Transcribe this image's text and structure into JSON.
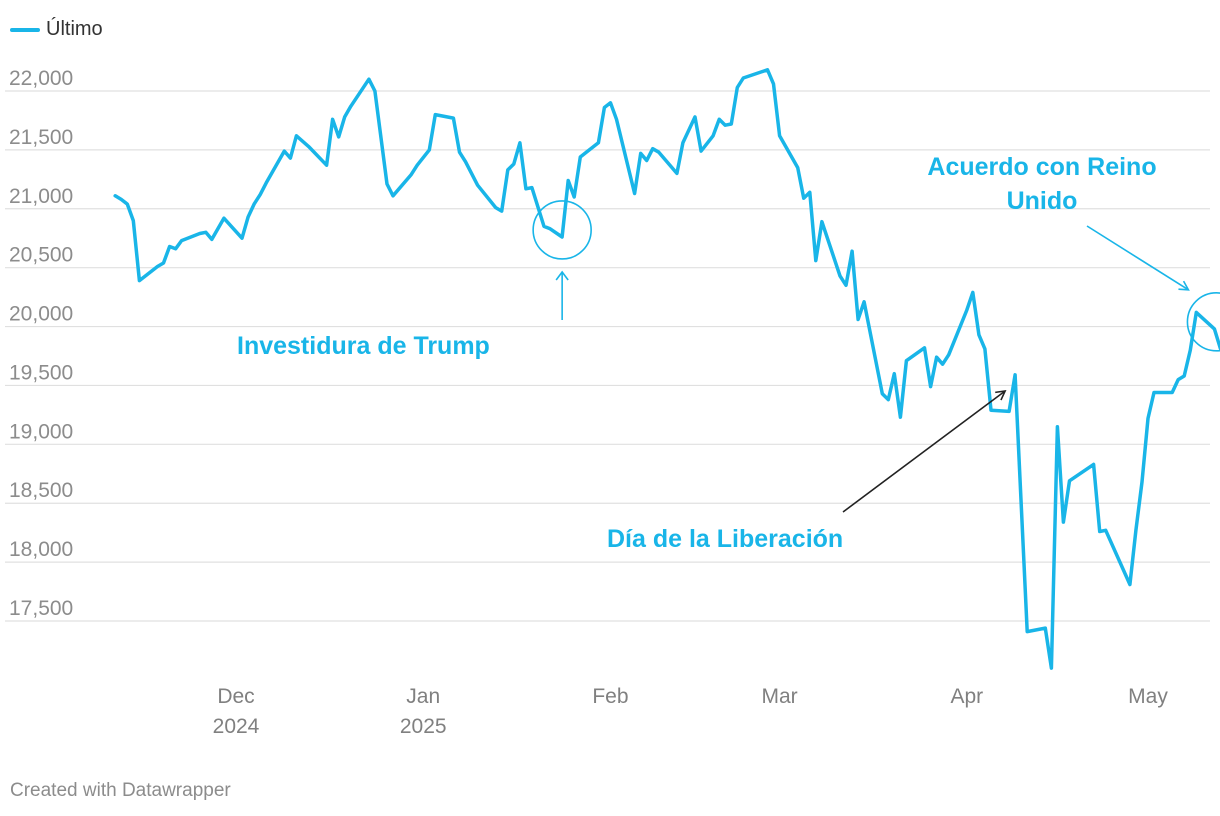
{
  "legend": {
    "label": "Último",
    "color": "#19b5e8"
  },
  "footer": "Created with Datawrapper",
  "chart_data": {
    "type": "line",
    "title": "",
    "xlabel": "",
    "ylabel": "",
    "ylim": [
      17000,
      22300
    ],
    "yticks": [
      {
        "value": 17500,
        "label": "17,500"
      },
      {
        "value": 18000,
        "label": "18,000"
      },
      {
        "value": 18500,
        "label": "18,500"
      },
      {
        "value": 19000,
        "label": "19,000"
      },
      {
        "value": 19500,
        "label": "19,500"
      },
      {
        "value": 20000,
        "label": "20,000"
      },
      {
        "value": 20500,
        "label": "20,500"
      },
      {
        "value": 21000,
        "label": "21,000"
      },
      {
        "value": 21500,
        "label": "21,500"
      },
      {
        "value": 22000,
        "label": "22,000"
      }
    ],
    "xrange": [
      "2024-11-08",
      "2025-05-08"
    ],
    "xticks": [
      {
        "date": "2024-12-01",
        "line1": "Dec",
        "line2": "2024"
      },
      {
        "date": "2025-01-01",
        "line1": "Jan",
        "line2": "2025"
      },
      {
        "date": "2025-02-01",
        "line1": "Feb",
        "line2": ""
      },
      {
        "date": "2025-03-01",
        "line1": "Mar",
        "line2": ""
      },
      {
        "date": "2025-04-01",
        "line1": "Apr",
        "line2": ""
      },
      {
        "date": "2025-05-01",
        "line1": "May",
        "line2": ""
      }
    ],
    "grid": true,
    "legend_position": "top-left",
    "series": [
      {
        "name": "Último",
        "color": "#19b5e8",
        "points": [
          [
            "2024-11-11",
            21110
          ],
          [
            "2024-11-12",
            21080
          ],
          [
            "2024-11-13",
            21040
          ],
          [
            "2024-11-14",
            20900
          ],
          [
            "2024-11-15",
            20390
          ],
          [
            "2024-11-18",
            20510
          ],
          [
            "2024-11-19",
            20540
          ],
          [
            "2024-11-20",
            20680
          ],
          [
            "2024-11-21",
            20660
          ],
          [
            "2024-11-22",
            20730
          ],
          [
            "2024-11-25",
            20790
          ],
          [
            "2024-11-26",
            20800
          ],
          [
            "2024-11-27",
            20740
          ],
          [
            "2024-11-29",
            20920
          ],
          [
            "2024-12-02",
            20750
          ],
          [
            "2024-12-03",
            20930
          ],
          [
            "2024-12-04",
            21040
          ],
          [
            "2024-12-05",
            21120
          ],
          [
            "2024-12-06",
            21220
          ],
          [
            "2024-12-09",
            21490
          ],
          [
            "2024-12-10",
            21430
          ],
          [
            "2024-12-11",
            21620
          ],
          [
            "2024-12-13",
            21530
          ],
          [
            "2024-12-16",
            21370
          ],
          [
            "2024-12-17",
            21760
          ],
          [
            "2024-12-18",
            21610
          ],
          [
            "2024-12-19",
            21780
          ],
          [
            "2024-12-20",
            21870
          ],
          [
            "2024-12-23",
            22100
          ],
          [
            "2024-12-24",
            22000
          ],
          [
            "2024-12-26",
            21210
          ],
          [
            "2024-12-27",
            21110
          ],
          [
            "2024-12-30",
            21290
          ],
          [
            "2024-12-31",
            21370
          ],
          [
            "2025-01-02",
            21500
          ],
          [
            "2025-01-03",
            21800
          ],
          [
            "2025-01-06",
            21770
          ],
          [
            "2025-01-07",
            21480
          ],
          [
            "2025-01-08",
            21400
          ],
          [
            "2025-01-10",
            21200
          ],
          [
            "2025-01-13",
            21010
          ],
          [
            "2025-01-14",
            20980
          ],
          [
            "2025-01-15",
            21330
          ],
          [
            "2025-01-16",
            21380
          ],
          [
            "2025-01-17",
            21560
          ],
          [
            "2025-01-18",
            21170
          ],
          [
            "2025-01-19",
            21180
          ],
          [
            "2025-01-21",
            20850
          ],
          [
            "2025-01-22",
            20830
          ],
          [
            "2025-01-24",
            20760
          ],
          [
            "2025-01-25",
            21240
          ],
          [
            "2025-01-26",
            21100
          ],
          [
            "2025-01-27",
            21440
          ],
          [
            "2025-01-28",
            21480
          ],
          [
            "2025-01-30",
            21560
          ],
          [
            "2025-01-31",
            21860
          ],
          [
            "2025-02-01",
            21900
          ],
          [
            "2025-02-02",
            21760
          ],
          [
            "2025-02-05",
            21130
          ],
          [
            "2025-02-06",
            21470
          ],
          [
            "2025-02-07",
            21410
          ],
          [
            "2025-02-08",
            21510
          ],
          [
            "2025-02-09",
            21480
          ],
          [
            "2025-02-12",
            21300
          ],
          [
            "2025-02-13",
            21560
          ],
          [
            "2025-02-15",
            21780
          ],
          [
            "2025-02-16",
            21490
          ],
          [
            "2025-02-18",
            21620
          ],
          [
            "2025-02-19",
            21760
          ],
          [
            "2025-02-20",
            21710
          ],
          [
            "2025-02-21",
            21720
          ],
          [
            "2025-02-22",
            22030
          ],
          [
            "2025-02-23",
            22110
          ],
          [
            "2025-02-27",
            22180
          ],
          [
            "2025-02-28",
            22060
          ],
          [
            "2025-03-01",
            21620
          ],
          [
            "2025-03-04",
            21350
          ],
          [
            "2025-03-05",
            21090
          ],
          [
            "2025-03-06",
            21140
          ],
          [
            "2025-03-07",
            20560
          ],
          [
            "2025-03-08",
            20890
          ],
          [
            "2025-03-11",
            20430
          ],
          [
            "2025-03-12",
            20350
          ],
          [
            "2025-03-13",
            20640
          ],
          [
            "2025-03-14",
            20060
          ],
          [
            "2025-03-15",
            20210
          ],
          [
            "2025-03-18",
            19430
          ],
          [
            "2025-03-19",
            19380
          ],
          [
            "2025-03-20",
            19600
          ],
          [
            "2025-03-21",
            19230
          ],
          [
            "2025-03-22",
            19710
          ],
          [
            "2025-03-25",
            19820
          ],
          [
            "2025-03-26",
            19490
          ],
          [
            "2025-03-27",
            19740
          ],
          [
            "2025-03-28",
            19680
          ],
          [
            "2025-03-29",
            19760
          ],
          [
            "2025-04-01",
            20140
          ],
          [
            "2025-04-02",
            20290
          ],
          [
            "2025-04-03",
            19930
          ],
          [
            "2025-04-04",
            19810
          ],
          [
            "2025-04-05",
            19290
          ],
          [
            "2025-04-08",
            19280
          ],
          [
            "2025-04-09",
            19590
          ],
          [
            "2025-04-11",
            17410
          ],
          [
            "2025-04-14",
            17440
          ],
          [
            "2025-04-15",
            17100
          ],
          [
            "2025-04-16",
            19150
          ],
          [
            "2025-04-17",
            18340
          ],
          [
            "2025-04-18",
            18690
          ],
          [
            "2025-04-22",
            18830
          ],
          [
            "2025-04-23",
            18260
          ],
          [
            "2025-04-24",
            18270
          ],
          [
            "2025-04-28",
            17810
          ],
          [
            "2025-04-29",
            18270
          ],
          [
            "2025-04-30",
            18680
          ],
          [
            "2025-05-01",
            19220
          ],
          [
            "2025-05-02",
            19440
          ],
          [
            "2025-05-05",
            19440
          ],
          [
            "2025-05-06",
            19550
          ],
          [
            "2025-05-07",
            19580
          ],
          [
            "2025-05-08",
            19800
          ],
          [
            "2025-05-09",
            20120
          ],
          [
            "2025-05-12",
            19980
          ],
          [
            "2025-05-13",
            19810
          ],
          [
            "2025-05-14",
            19860
          ],
          [
            "2025-05-15",
            20000
          ]
        ]
      }
    ],
    "annotations": [
      {
        "id": "investidura",
        "text": "Investidura de Trump",
        "date": "2025-01-24",
        "value": 20820,
        "style": "circle"
      },
      {
        "id": "liberacion",
        "text": "Día de la Liberación",
        "date": "2025-04-09",
        "value": 19470,
        "style": "arrow"
      },
      {
        "id": "acuerdo",
        "text": [
          "Acuerdo con Reino",
          "Unido"
        ],
        "date": "2025-05-12",
        "value": 20040,
        "style": "circle"
      }
    ]
  }
}
